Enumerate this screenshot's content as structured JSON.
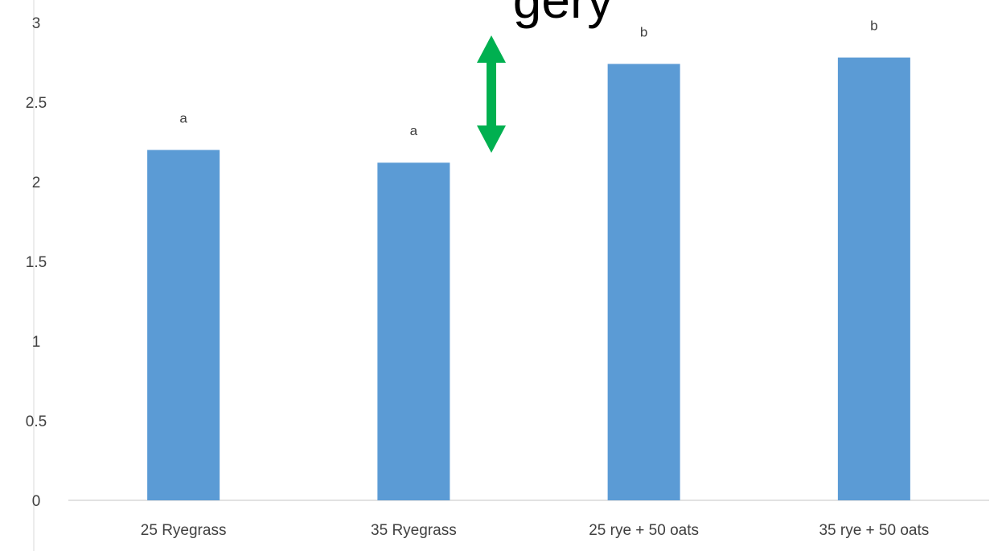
{
  "chart_data": {
    "type": "bar",
    "title_fragment": "gery",
    "categories": [
      "25 Ryegrass",
      "35 Ryegrass",
      "25 rye + 50 oats",
      "35 rye + 50 oats"
    ],
    "values": [
      2.2,
      2.12,
      2.74,
      2.78
    ],
    "data_labels": [
      "a",
      "a",
      "b",
      "b"
    ],
    "ylim": [
      0,
      3
    ],
    "yticks": [
      "0",
      "0.5",
      "1",
      "1.5",
      "2",
      "2.5",
      "3"
    ],
    "ytick_values": [
      0,
      0.5,
      1,
      1.5,
      2,
      2.5,
      3
    ],
    "grid": false,
    "bar_color": "#5B9BD5",
    "annotation": {
      "type": "double-arrow",
      "color": "#00B050"
    }
  }
}
